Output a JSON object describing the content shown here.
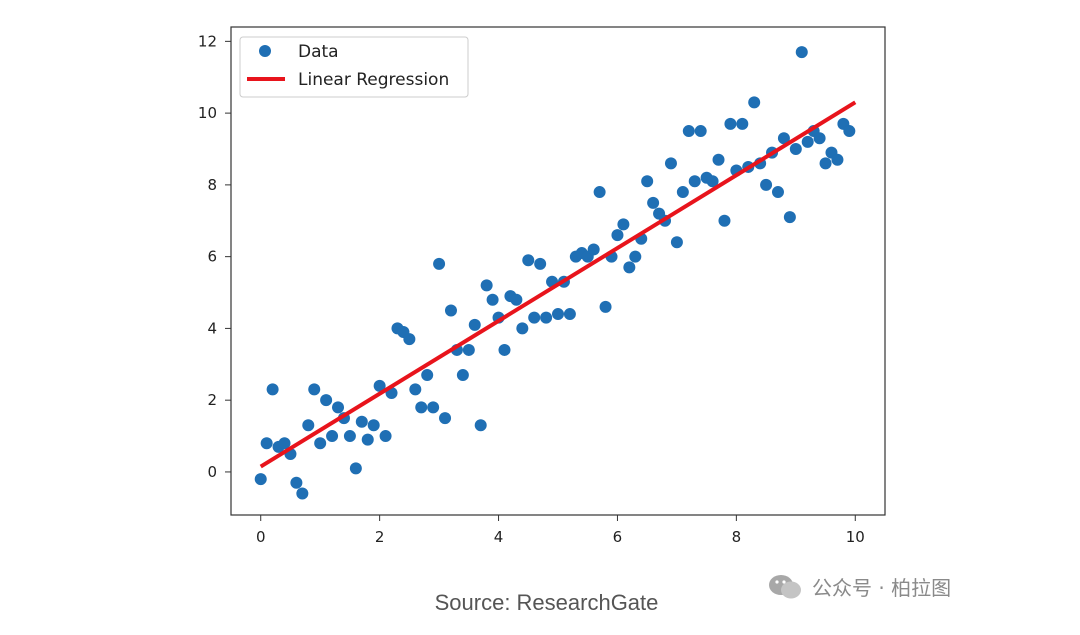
{
  "chart_data": {
    "type": "scatter",
    "xlim": [
      -0.5,
      10.5
    ],
    "ylim": [
      -1.2,
      12.4
    ],
    "xticks": [
      0,
      2,
      4,
      6,
      8,
      10
    ],
    "yticks": [
      0,
      2,
      4,
      6,
      8,
      10,
      12
    ],
    "grid": false,
    "legend_position": "top-left",
    "series": [
      {
        "name": "Data",
        "kind": "scatter",
        "color": "#1f6fb4",
        "points": [
          [
            0.0,
            -0.2
          ],
          [
            0.1,
            0.8
          ],
          [
            0.2,
            2.3
          ],
          [
            0.3,
            0.7
          ],
          [
            0.4,
            0.8
          ],
          [
            0.5,
            0.5
          ],
          [
            0.6,
            -0.3
          ],
          [
            0.7,
            -0.6
          ],
          [
            0.8,
            1.3
          ],
          [
            0.9,
            2.3
          ],
          [
            1.0,
            0.8
          ],
          [
            1.1,
            2.0
          ],
          [
            1.2,
            1.0
          ],
          [
            1.3,
            1.8
          ],
          [
            1.4,
            1.5
          ],
          [
            1.5,
            1.0
          ],
          [
            1.6,
            0.1
          ],
          [
            1.7,
            1.4
          ],
          [
            1.8,
            0.9
          ],
          [
            1.9,
            1.3
          ],
          [
            2.0,
            2.4
          ],
          [
            2.1,
            1.0
          ],
          [
            2.2,
            2.2
          ],
          [
            2.3,
            4.0
          ],
          [
            2.4,
            3.9
          ],
          [
            2.5,
            3.7
          ],
          [
            2.6,
            2.3
          ],
          [
            2.7,
            1.8
          ],
          [
            2.8,
            2.7
          ],
          [
            2.9,
            1.8
          ],
          [
            3.0,
            5.8
          ],
          [
            3.1,
            1.5
          ],
          [
            3.2,
            4.5
          ],
          [
            3.3,
            3.4
          ],
          [
            3.4,
            2.7
          ],
          [
            3.5,
            3.4
          ],
          [
            3.6,
            4.1
          ],
          [
            3.7,
            1.3
          ],
          [
            3.8,
            5.2
          ],
          [
            3.9,
            4.8
          ],
          [
            4.0,
            4.3
          ],
          [
            4.1,
            3.4
          ],
          [
            4.2,
            4.9
          ],
          [
            4.3,
            4.8
          ],
          [
            4.4,
            4.0
          ],
          [
            4.5,
            5.9
          ],
          [
            4.6,
            4.3
          ],
          [
            4.7,
            5.8
          ],
          [
            4.8,
            4.3
          ],
          [
            4.9,
            5.3
          ],
          [
            5.0,
            4.4
          ],
          [
            5.1,
            5.3
          ],
          [
            5.2,
            4.4
          ],
          [
            5.3,
            6.0
          ],
          [
            5.4,
            6.1
          ],
          [
            5.5,
            6.0
          ],
          [
            5.6,
            6.2
          ],
          [
            5.7,
            7.8
          ],
          [
            5.8,
            4.6
          ],
          [
            5.9,
            6.0
          ],
          [
            6.0,
            6.6
          ],
          [
            6.1,
            6.9
          ],
          [
            6.2,
            5.7
          ],
          [
            6.3,
            6.0
          ],
          [
            6.4,
            6.5
          ],
          [
            6.5,
            8.1
          ],
          [
            6.6,
            7.5
          ],
          [
            6.7,
            7.2
          ],
          [
            6.8,
            7.0
          ],
          [
            6.9,
            8.6
          ],
          [
            7.0,
            6.4
          ],
          [
            7.1,
            7.8
          ],
          [
            7.2,
            9.5
          ],
          [
            7.3,
            8.1
          ],
          [
            7.4,
            9.5
          ],
          [
            7.5,
            8.2
          ],
          [
            7.6,
            8.1
          ],
          [
            7.7,
            8.7
          ],
          [
            7.8,
            7.0
          ],
          [
            7.9,
            9.7
          ],
          [
            8.0,
            8.4
          ],
          [
            8.1,
            9.7
          ],
          [
            8.2,
            8.5
          ],
          [
            8.3,
            10.3
          ],
          [
            8.4,
            8.6
          ],
          [
            8.5,
            8.0
          ],
          [
            8.6,
            8.9
          ],
          [
            8.7,
            7.8
          ],
          [
            8.8,
            9.3
          ],
          [
            8.9,
            7.1
          ],
          [
            9.0,
            9.0
          ],
          [
            9.1,
            11.7
          ],
          [
            9.2,
            9.2
          ],
          [
            9.3,
            9.5
          ],
          [
            9.4,
            9.3
          ],
          [
            9.5,
            8.6
          ],
          [
            9.6,
            8.9
          ],
          [
            9.7,
            8.7
          ],
          [
            9.8,
            9.7
          ],
          [
            9.9,
            9.5
          ]
        ]
      },
      {
        "name": "Linear Regression",
        "kind": "line",
        "color": "#e8141c",
        "points": [
          [
            0.0,
            0.15
          ],
          [
            10.0,
            10.3
          ]
        ]
      }
    ]
  },
  "source_text": "Source: ResearchGate",
  "watermark_text": "公众号 · 柏拉图"
}
